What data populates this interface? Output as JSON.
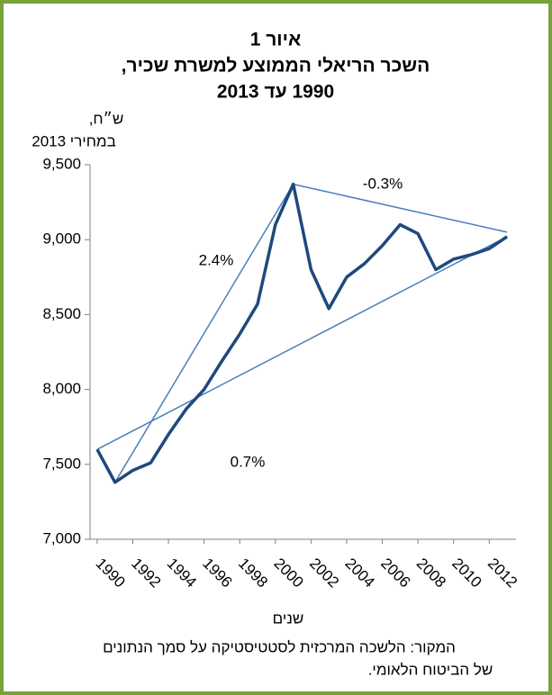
{
  "chart_data": {
    "type": "line",
    "title": [
      "איור 1",
      "השכר הריאלי הממוצע למשרת שכיר,",
      "1990 עד 2013"
    ],
    "y_label": [
      "ש״ח,",
      "במחירי 2013"
    ],
    "x_label": "שנים",
    "source": [
      "המקור: הלשכה המרכזית לסטטיסטיקה על סמך הנתונים",
      "של הביטוח הלאומי."
    ],
    "x": [
      1990,
      1991,
      1992,
      1993,
      1994,
      1995,
      1996,
      1997,
      1998,
      1999,
      2000,
      2001,
      2002,
      2003,
      2004,
      2005,
      2006,
      2007,
      2008,
      2009,
      2010,
      2011,
      2012,
      2013
    ],
    "values": [
      7600,
      7380,
      7460,
      7510,
      7700,
      7870,
      8000,
      8190,
      8370,
      8570,
      9100,
      9370,
      8800,
      8540,
      8750,
      8840,
      8960,
      9100,
      9040,
      8800,
      8870,
      8900,
      8940,
      9020
    ],
    "color": "#1f497d",
    "xlim": [
      1989.6,
      2013.5
    ],
    "xticks": [
      1990,
      1992,
      1994,
      1996,
      1998,
      2000,
      2002,
      2004,
      2006,
      2008,
      2010,
      2012
    ],
    "ylim": [
      7000,
      9500
    ],
    "yticks": [
      {
        "value": 7000,
        "label": "7,000"
      },
      {
        "value": 7500,
        "label": "7,500"
      },
      {
        "value": 8000,
        "label": "8,000"
      },
      {
        "value": 8500,
        "label": "8,500"
      },
      {
        "value": 9000,
        "label": "9,000"
      },
      {
        "value": 9500,
        "label": "9,500"
      }
    ],
    "grid": false,
    "trend_lines": [
      {
        "label": "0.7%",
        "x": [
          1990,
          2013
        ],
        "values": [
          7600,
          9020
        ]
      },
      {
        "label": "2.4%",
        "x": [
          1991,
          2001
        ],
        "values": [
          7380,
          9370
        ]
      },
      {
        "label": "-0.3%",
        "x": [
          2001,
          2013
        ],
        "values": [
          9370,
          9050
        ]
      }
    ],
    "trend_color": "#4a7ebb"
  }
}
